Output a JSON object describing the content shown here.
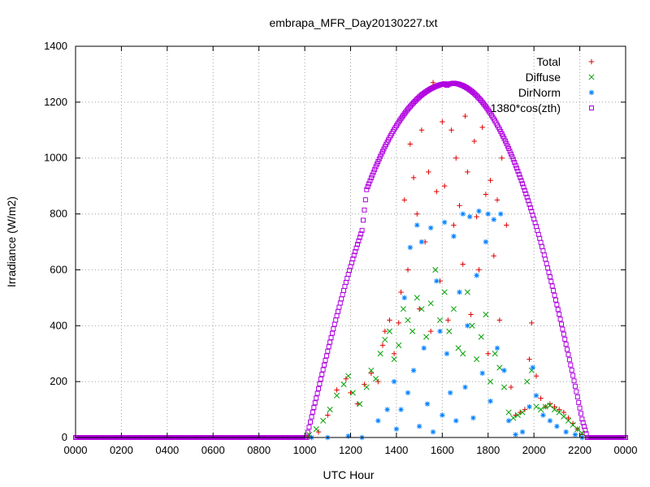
{
  "chart_data": {
    "type": "scatter",
    "title": "embrapa_MFR_Day20130227.txt",
    "xlabel": "UTC Hour",
    "ylabel": "Irradiance (W/m2)",
    "xlim": [
      0,
      24
    ],
    "ylim": [
      0,
      1400
    ],
    "x_ticks": [
      0,
      2,
      4,
      6,
      8,
      10,
      12,
      14,
      16,
      18,
      20,
      22,
      24
    ],
    "x_tick_labels": [
      "0000",
      "0200",
      "0400",
      "0600",
      "0800",
      "1000",
      "1200",
      "1400",
      "1600",
      "1800",
      "2000",
      "2200",
      "0000"
    ],
    "y_ticks": [
      0,
      200,
      400,
      600,
      800,
      1000,
      1200,
      1400
    ],
    "y_tick_labels": [
      "0",
      "200",
      "400",
      "600",
      "800",
      "1000",
      "1200",
      "1400"
    ],
    "grid": true,
    "legend_position": "top-right",
    "series": [
      {
        "name": "Total",
        "marker": "plus",
        "color": "#e00000",
        "x": [
          10.2,
          10.6,
          11.0,
          11.4,
          11.8,
          12.0,
          12.3,
          12.6,
          12.9,
          13.2,
          13.4,
          13.5,
          13.7,
          13.9,
          14.1,
          14.2,
          14.35,
          14.5,
          14.6,
          14.75,
          14.9,
          15.0,
          15.1,
          15.25,
          15.4,
          15.5,
          15.6,
          15.75,
          15.9,
          16.0,
          16.1,
          16.25,
          16.4,
          16.5,
          16.6,
          16.75,
          16.9,
          17.0,
          17.1,
          17.25,
          17.4,
          17.5,
          17.6,
          17.75,
          17.9,
          18.0,
          18.1,
          18.25,
          18.4,
          18.5,
          18.6,
          18.8,
          19.0,
          19.2,
          19.4,
          19.6,
          19.8,
          19.9,
          20.1,
          20.3,
          20.5,
          20.7,
          20.9,
          21.1,
          21.3,
          21.5,
          21.7,
          21.9,
          22.1
        ],
        "y": [
          5,
          20,
          80,
          170,
          210,
          160,
          120,
          190,
          230,
          200,
          330,
          380,
          420,
          300,
          410,
          520,
          850,
          600,
          1050,
          930,
          800,
          460,
          1100,
          700,
          950,
          380,
          1270,
          880,
          560,
          1130,
          900,
          420,
          1100,
          760,
          1000,
          830,
          620,
          1150,
          950,
          440,
          1060,
          790,
          600,
          1110,
          870,
          300,
          920,
          650,
          850,
          420,
          1000,
          760,
          180,
          80,
          90,
          100,
          280,
          410,
          220,
          140,
          110,
          120,
          110,
          100,
          90,
          70,
          50,
          30,
          10
        ]
      },
      {
        "name": "Diffuse",
        "marker": "cross",
        "color": "#00a000",
        "x": [
          10.2,
          10.5,
          10.8,
          11.1,
          11.4,
          11.7,
          11.9,
          12.1,
          12.4,
          12.7,
          12.9,
          13.1,
          13.3,
          13.5,
          13.7,
          13.9,
          14.1,
          14.3,
          14.5,
          14.7,
          14.9,
          15.1,
          15.3,
          15.5,
          15.7,
          15.9,
          16.1,
          16.3,
          16.5,
          16.7,
          16.9,
          17.1,
          17.3,
          17.5,
          17.7,
          17.9,
          18.1,
          18.3,
          18.5,
          18.7,
          18.9,
          19.1,
          19.3,
          19.5,
          19.7,
          19.9,
          20.1,
          20.3,
          20.5,
          20.7,
          20.9,
          21.1,
          21.3,
          21.5,
          21.7,
          21.9,
          22.1
        ],
        "y": [
          10,
          30,
          60,
          100,
          150,
          190,
          220,
          160,
          120,
          180,
          240,
          210,
          300,
          350,
          380,
          280,
          330,
          460,
          420,
          380,
          500,
          460,
          360,
          480,
          600,
          420,
          520,
          380,
          460,
          320,
          300,
          520,
          400,
          280,
          360,
          440,
          200,
          300,
          250,
          180,
          90,
          70,
          80,
          90,
          200,
          240,
          110,
          100,
          110,
          115,
          100,
          90,
          75,
          60,
          45,
          30,
          15
        ]
      },
      {
        "name": "DirNorm",
        "marker": "star",
        "color": "#0080ff",
        "x": [
          10.3,
          11.0,
          11.9,
          12.5,
          13.2,
          13.6,
          13.9,
          14.0,
          14.2,
          14.35,
          14.5,
          14.6,
          14.75,
          14.9,
          15.0,
          15.1,
          15.2,
          15.35,
          15.5,
          15.6,
          15.75,
          15.9,
          16.0,
          16.1,
          16.2,
          16.35,
          16.5,
          16.6,
          16.75,
          16.9,
          17.0,
          17.1,
          17.2,
          17.35,
          17.5,
          17.6,
          17.75,
          17.9,
          18.0,
          18.1,
          18.25,
          18.4,
          18.55,
          18.7,
          18.9,
          19.2,
          19.5,
          19.8,
          19.95,
          20.1,
          20.4,
          20.7,
          21.0,
          21.4,
          21.8,
          22.1
        ],
        "y": [
          0,
          0,
          5,
          0,
          60,
          100,
          200,
          30,
          100,
          500,
          160,
          680,
          240,
          760,
          40,
          700,
          320,
          120,
          750,
          20,
          560,
          380,
          80,
          770,
          300,
          160,
          720,
          60,
          520,
          800,
          180,
          400,
          790,
          70,
          580,
          810,
          230,
          700,
          800,
          130,
          780,
          320,
          800,
          240,
          60,
          10,
          20,
          110,
          250,
          150,
          80,
          60,
          40,
          20,
          10,
          0
        ]
      },
      {
        "name": "1380*cos(zth)",
        "marker": "square",
        "color": "#b000e0",
        "x": [
          0.0,
          10.08,
          10.3,
          10.5,
          10.7,
          10.9,
          11.1,
          11.3,
          11.5,
          11.7,
          11.9,
          12.1,
          12.3,
          12.5,
          12.7,
          12.9,
          13.1,
          13.3,
          13.5,
          13.7,
          13.9,
          14.1,
          14.3,
          14.5,
          14.7,
          14.9,
          15.1,
          15.3,
          15.5,
          15.7,
          15.9,
          16.1,
          16.2,
          16.3,
          16.5,
          16.7,
          16.9,
          17.1,
          17.3,
          17.5,
          17.7,
          17.9,
          18.1,
          18.3,
          18.5,
          18.7,
          18.9,
          19.1,
          19.3,
          19.5,
          19.7,
          19.9,
          20.1,
          20.3,
          20.5,
          20.7,
          20.9,
          21.1,
          21.3,
          21.5,
          21.7,
          21.9,
          22.1,
          22.33,
          24.0
        ],
        "y": [
          0,
          0,
          74,
          141,
          209,
          276,
          341,
          405,
          466,
          526,
          584,
          639,
          691,
          741,
          887,
          929,
          969,
          1006,
          1041,
          1073,
          1102,
          1129,
          1153,
          1175,
          1194,
          1211,
          1226,
          1238,
          1248,
          1256,
          1262,
          1266,
          1260,
          1265,
          1268,
          1265,
          1259,
          1250,
          1238,
          1223,
          1205,
          1184,
          1160,
          1133,
          1103,
          1070,
          1034,
          995,
          953,
          908,
          860,
          809,
          755,
          698,
          638,
          575,
          509,
          441,
          370,
          297,
          222,
          145,
          66,
          0,
          0
        ]
      }
    ]
  }
}
